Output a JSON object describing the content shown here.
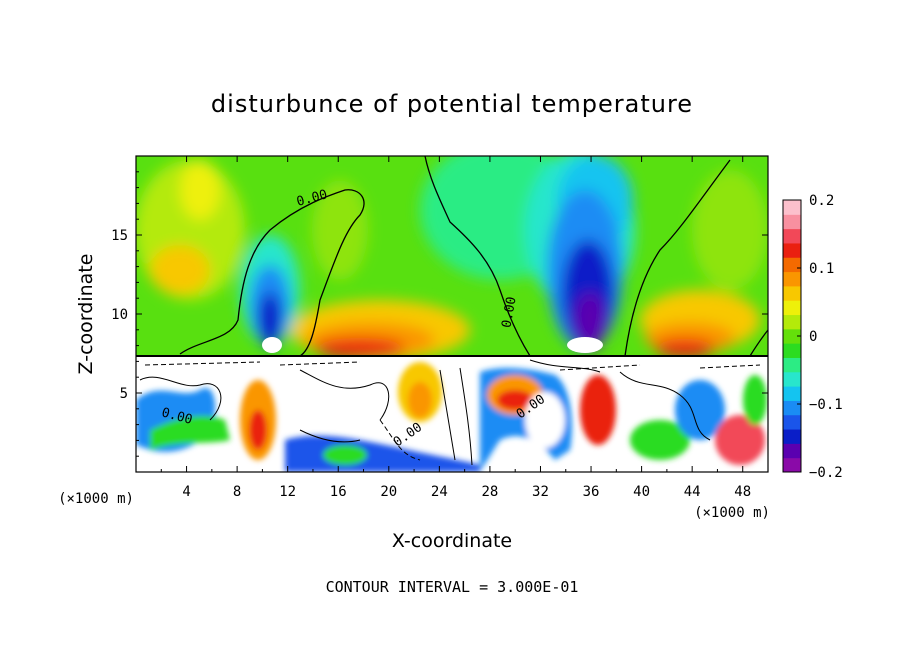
{
  "chart_data": {
    "type": "heatmap",
    "title": "disturbunce of potential temperature",
    "xlabel": "X-coordinate",
    "ylabel": "Z-coordinate",
    "x_unit": "(×1000 m)",
    "z_unit": "(×1000 m)",
    "footnote": "CONTOUR INTERVAL = 3.000E-01",
    "xlim": [
      0,
      50
    ],
    "ylim": [
      0,
      20
    ],
    "x_ticks": [
      4,
      8,
      12,
      16,
      20,
      24,
      28,
      32,
      36,
      40,
      44,
      48
    ],
    "y_ticks": [
      5,
      10,
      15
    ],
    "colorbar": {
      "min": -0.2,
      "max": 0.2,
      "tick_values": [
        0.2,
        0.1,
        0,
        -0.1,
        -0.2
      ],
      "tick_labels": [
        "0.2",
        "0.1",
        "0",
        "−0.1",
        "−0.2"
      ],
      "colors": [
        "#8a0aa8",
        "#5a00b0",
        "#0a1ec8",
        "#1a55ea",
        "#1a8cf4",
        "#14c4f0",
        "#28e6cc",
        "#2cec84",
        "#2cdc20",
        "#64e00a",
        "#b4ea0a",
        "#eef00a",
        "#f8c800",
        "#fa9600",
        "#f46a00",
        "#ea2010",
        "#f24858",
        "#f890a0",
        "#fcc0cc"
      ]
    },
    "contour_labels": [
      "0.00",
      "0.00",
      "0.00",
      "0.00",
      "0.00"
    ],
    "features": [
      {
        "type": "warm",
        "x": 45,
        "z": 9.5,
        "value": 0.12
      },
      {
        "type": "warm",
        "x": 19,
        "z": 9,
        "value": 0.16
      },
      {
        "type": "warm",
        "x": 4,
        "z": 16,
        "value": 0.08
      },
      {
        "type": "cool",
        "x": 10.5,
        "z": 11,
        "value": -0.2
      },
      {
        "type": "cool",
        "x": 35.5,
        "z": 11,
        "value": -0.2
      },
      {
        "type": "cool",
        "x": 35,
        "z": 16,
        "value": -0.05
      },
      {
        "type": "cool",
        "x": 27,
        "z": 16,
        "value": -0.02
      }
    ]
  }
}
